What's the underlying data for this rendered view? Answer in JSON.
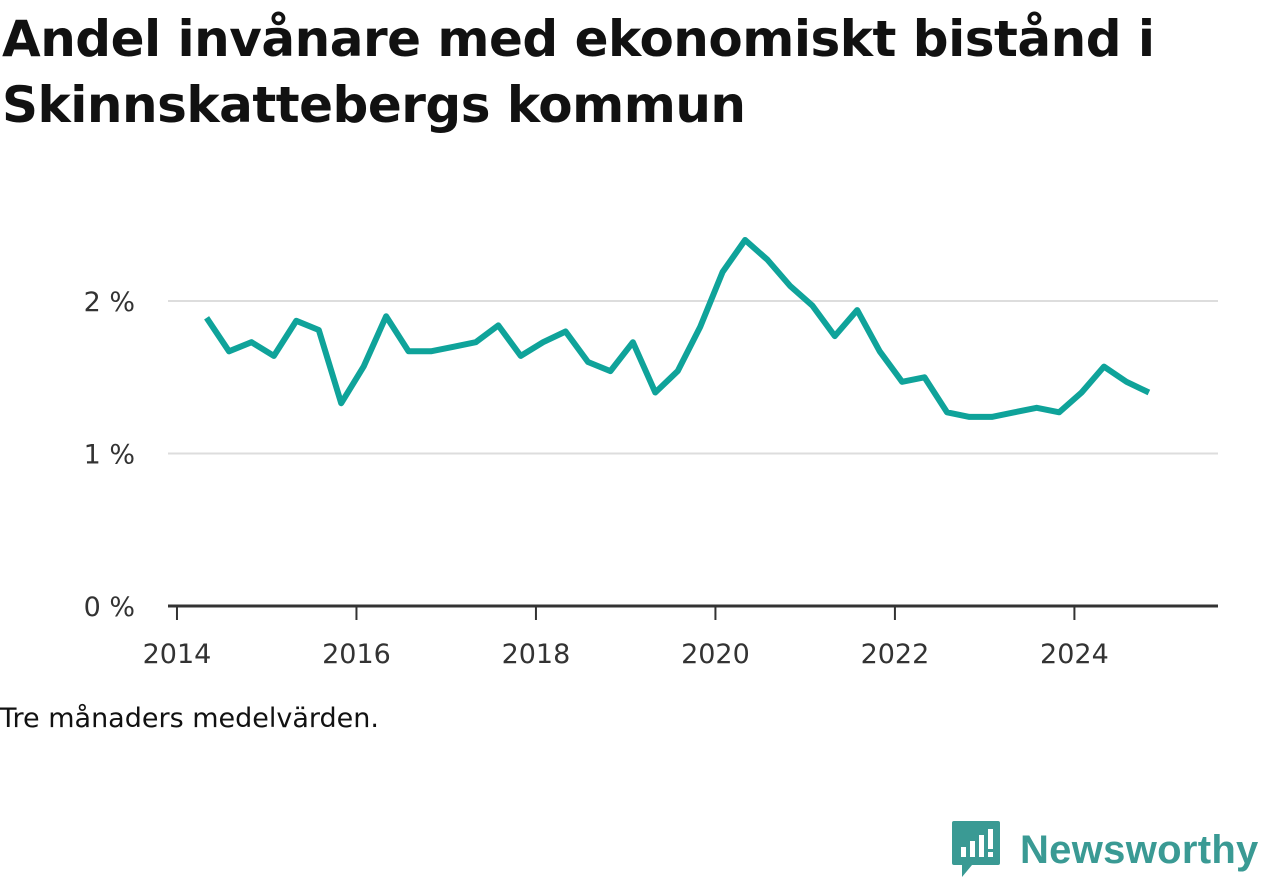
{
  "title": "Andel invånare med ekonomiskt bistånd i Skinnskattebergs kommun",
  "footnote": "Tre månaders medelvärden.",
  "brand": {
    "name": "Newsworthy",
    "icon": "newsworthy-logo-icon",
    "color": "#3a9a94"
  },
  "chart_data": {
    "type": "line",
    "title": "Andel invånare med ekonomiskt bistånd i Skinnskattebergs kommun",
    "xlabel": "",
    "ylabel": "",
    "grid": true,
    "legend": "none",
    "series_color": "#0fa39a",
    "xlim": [
      2013.9,
      2025.6
    ],
    "ylim": [
      0,
      2.4
    ],
    "x_ticks": [
      2014,
      2016,
      2018,
      2020,
      2022,
      2024
    ],
    "y_ticks": [
      {
        "value": 0,
        "label": "0 %"
      },
      {
        "value": 1,
        "label": "1 %"
      },
      {
        "value": 2,
        "label": "2 %"
      }
    ],
    "series": [
      {
        "x": [
          2014.33,
          2014.58,
          2014.83,
          2015.08,
          2015.33,
          2015.58,
          2015.83,
          2016.08,
          2016.33,
          2016.58,
          2016.83,
          2017.08,
          2017.33,
          2017.58,
          2017.83,
          2018.08,
          2018.33,
          2018.58,
          2018.83,
          2019.08,
          2019.33,
          2019.58,
          2019.83,
          2020.08,
          2020.33,
          2020.58,
          2020.83,
          2021.08,
          2021.33,
          2021.58,
          2021.83,
          2022.08,
          2022.33,
          2022.58,
          2022.83,
          2023.08,
          2023.33,
          2023.58,
          2023.83,
          2024.08,
          2024.33,
          2024.58,
          2024.83
        ],
        "values": [
          1.89,
          1.67,
          1.73,
          1.64,
          1.87,
          1.81,
          1.33,
          1.57,
          1.9,
          1.67,
          1.67,
          1.7,
          1.73,
          1.84,
          1.64,
          1.73,
          1.8,
          1.6,
          1.54,
          1.73,
          1.4,
          1.54,
          1.83,
          2.19,
          2.4,
          2.27,
          2.1,
          1.97,
          1.77,
          1.94,
          1.67,
          1.47,
          1.5,
          1.27,
          1.24,
          1.24,
          1.27,
          1.3,
          1.27,
          1.4,
          1.57,
          1.47,
          1.4
        ]
      }
    ]
  }
}
